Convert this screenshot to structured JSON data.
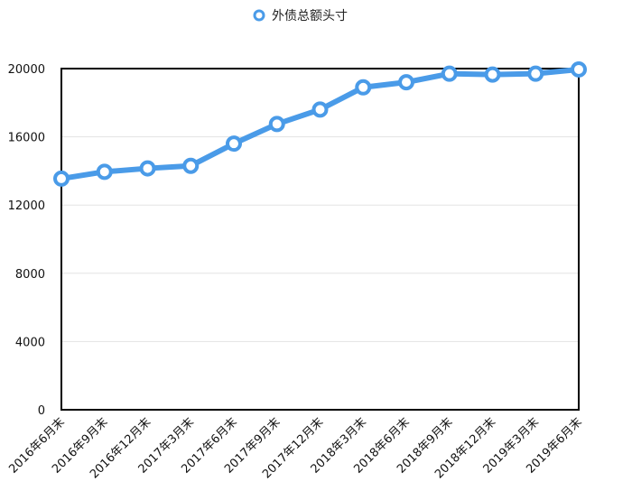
{
  "chart_data": {
    "type": "line",
    "title": "",
    "xlabel": "",
    "ylabel": "",
    "categories": [
      "2016年6月末",
      "2016年9月末",
      "2016年12月末",
      "2017年3月末",
      "2017年6月末",
      "2017年9月末",
      "2017年12月末",
      "2018年3月末",
      "2018年6月末",
      "2018年9月末",
      "2018年12月末",
      "2019年3月末",
      "2019年6月末"
    ],
    "series": [
      {
        "name": "外债总额头寸",
        "color": "#4A9BE8",
        "values": [
          13550,
          13950,
          14150,
          14300,
          15600,
          16750,
          17600,
          18900,
          19200,
          19700,
          19650,
          19700,
          19950
        ]
      }
    ],
    "yticks": [
      0,
      4000,
      8000,
      12000,
      16000,
      20000
    ],
    "ylim": [
      0,
      20000
    ],
    "grid": true,
    "legend_position": "top-center"
  }
}
